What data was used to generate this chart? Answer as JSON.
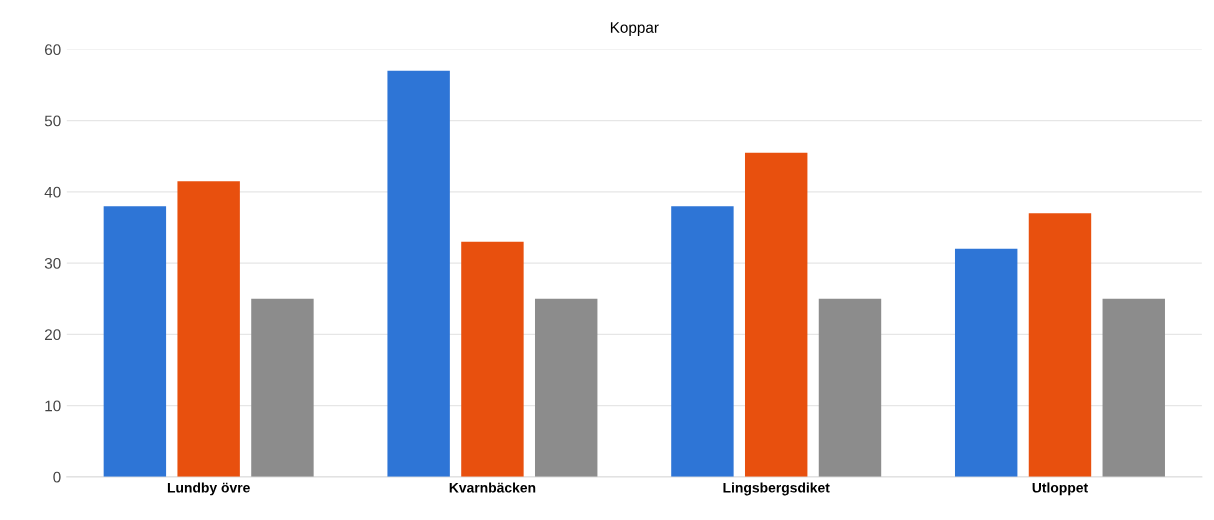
{
  "chart_data": {
    "type": "bar",
    "title": "Koppar",
    "categories": [
      "Lundby övre",
      "Kvarnbäcken",
      "Lingsbergsdiket",
      "Utloppet"
    ],
    "series": [
      {
        "color": "#2e75d6",
        "values": [
          38,
          57,
          38,
          32
        ]
      },
      {
        "color": "#e8500e",
        "values": [
          41.5,
          33,
          45.5,
          37
        ]
      },
      {
        "color": "#8c8c8c",
        "values": [
          25,
          25,
          25,
          25
        ]
      }
    ],
    "ylim": [
      0,
      60
    ],
    "yticks": [
      0,
      10,
      20,
      30,
      40,
      50,
      60
    ],
    "grid": "y",
    "legend": false
  }
}
